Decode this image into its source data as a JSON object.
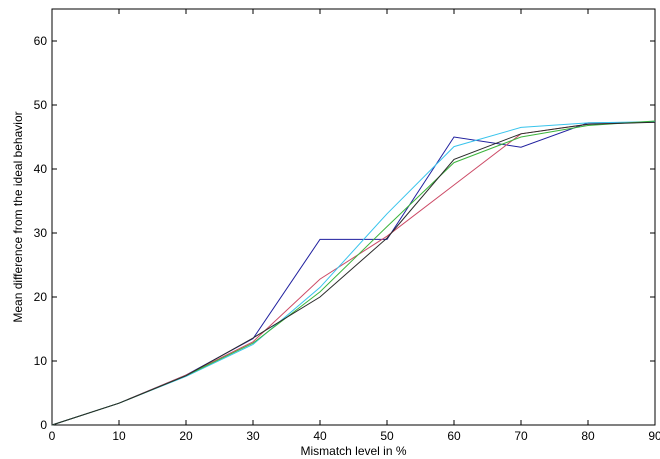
{
  "chart_data": {
    "type": "line",
    "title": "",
    "xlabel": "Mismatch level in %",
    "ylabel": "Mean difference from the ideal behavior",
    "xlim": [
      0,
      90
    ],
    "ylim": [
      0,
      65
    ],
    "xticks": [
      0,
      10,
      20,
      30,
      40,
      50,
      60,
      70,
      80,
      90
    ],
    "yticks": [
      0,
      10,
      20,
      30,
      40,
      50,
      60
    ],
    "grid": false,
    "x": [
      0,
      10,
      20,
      30,
      40,
      50,
      60,
      70,
      80,
      90
    ],
    "series": [
      {
        "color": "#1f1f9e",
        "values": [
          0,
          3.4,
          7.8,
          13.5,
          29.0,
          29.0,
          45.0,
          43.4,
          47.2,
          47.3
        ]
      },
      {
        "color": "#cc4a66",
        "values": [
          0,
          3.4,
          7.8,
          13.0,
          22.8,
          29.5,
          37.5,
          45.5,
          47.0,
          47.4
        ]
      },
      {
        "color": "#39c4ec",
        "values": [
          0,
          3.4,
          7.6,
          12.6,
          21.5,
          33.0,
          43.5,
          46.5,
          47.2,
          47.4
        ]
      },
      {
        "color": "#3cb43c",
        "values": [
          0,
          3.4,
          7.7,
          12.8,
          20.8,
          31.0,
          41.0,
          45.0,
          46.8,
          47.5
        ]
      },
      {
        "color": "#2a2a2a",
        "values": [
          0,
          3.4,
          7.7,
          13.6,
          20.0,
          29.2,
          41.5,
          45.5,
          47.0,
          47.3
        ]
      }
    ]
  }
}
